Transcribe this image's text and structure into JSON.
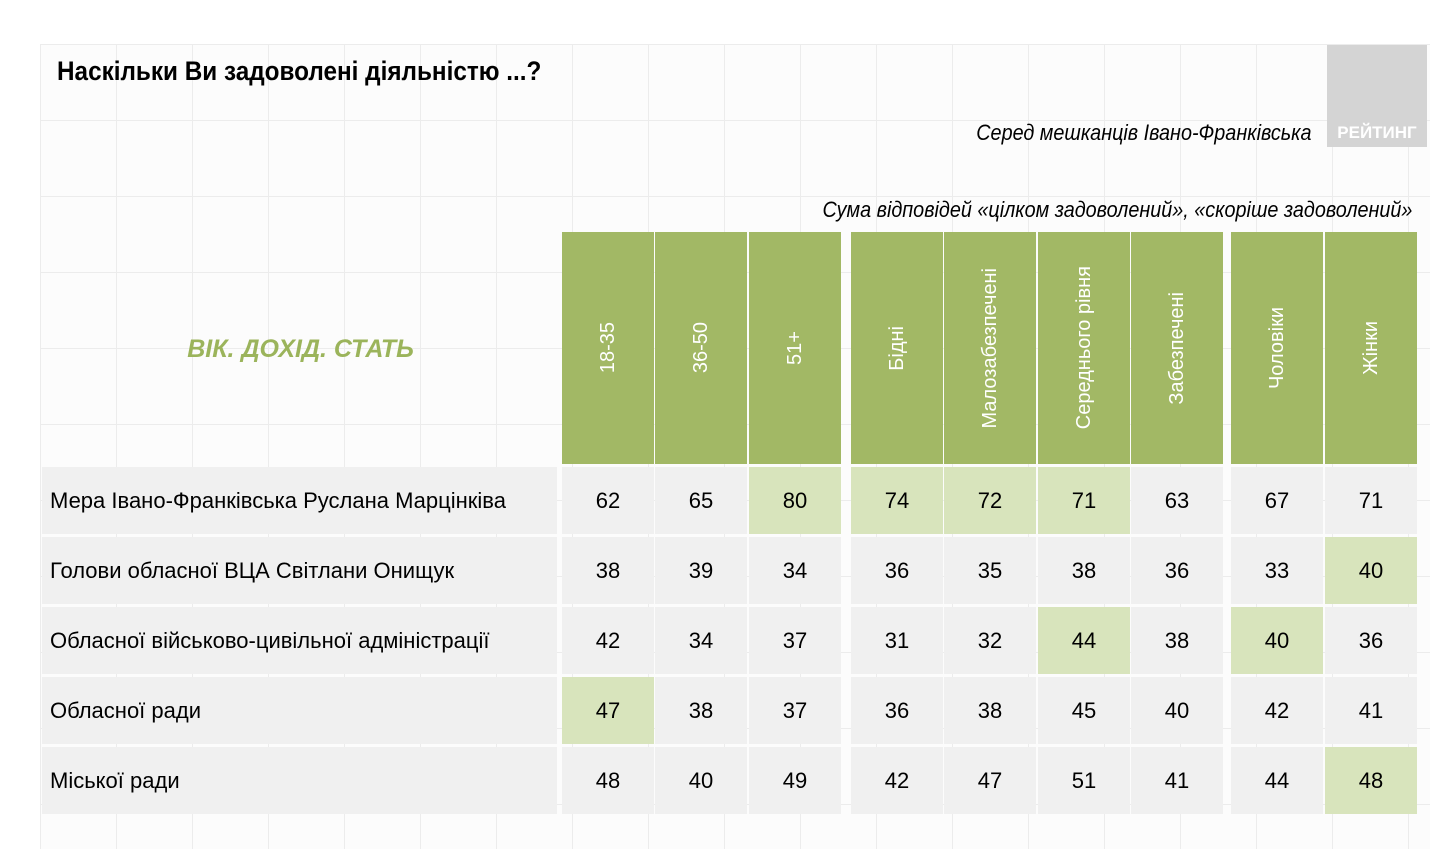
{
  "title": "Наскільки Ви задоволені діяльністю ...?",
  "logo": "РЕЙТИНГ",
  "subtitle": "Серед мешканців Івано-Франківська",
  "note": "Сума відповідей «цілком задоволений», «скоріше задоволений»",
  "group_label": "ВІК. ДОХІД. СТАТЬ",
  "columns": [
    "18-35",
    "36-50",
    "51+",
    "Бідні",
    "Малозабезпечені",
    "Середнього рівня",
    "Забезпечені",
    "Чоловіки",
    "Жінки"
  ],
  "rows": [
    {
      "label": "Мера Івано-Франківська Руслана Марцінківа",
      "values": [
        62,
        65,
        80,
        74,
        72,
        71,
        63,
        67,
        71
      ],
      "highlight": [
        2,
        3,
        4,
        5
      ]
    },
    {
      "label": "Голови обласної ВЦА Світлани Онищук",
      "values": [
        38,
        39,
        34,
        36,
        35,
        38,
        36,
        33,
        40
      ],
      "highlight": [
        8
      ]
    },
    {
      "label": "Обласної військово-цивільної адміністрації",
      "values": [
        42,
        34,
        37,
        31,
        32,
        44,
        38,
        40,
        36
      ],
      "highlight": [
        5,
        7
      ]
    },
    {
      "label": "Обласної ради",
      "values": [
        47,
        38,
        37,
        36,
        38,
        45,
        40,
        42,
        41
      ],
      "highlight": [
        0
      ]
    },
    {
      "label": "Міської ради",
      "values": [
        48,
        40,
        49,
        42,
        47,
        51,
        41,
        44,
        48
      ],
      "highlight": [
        8
      ]
    }
  ],
  "colors": {
    "header": "#a2b865",
    "highlight": "#d8e4bc",
    "cell": "#f0f0f0"
  }
}
